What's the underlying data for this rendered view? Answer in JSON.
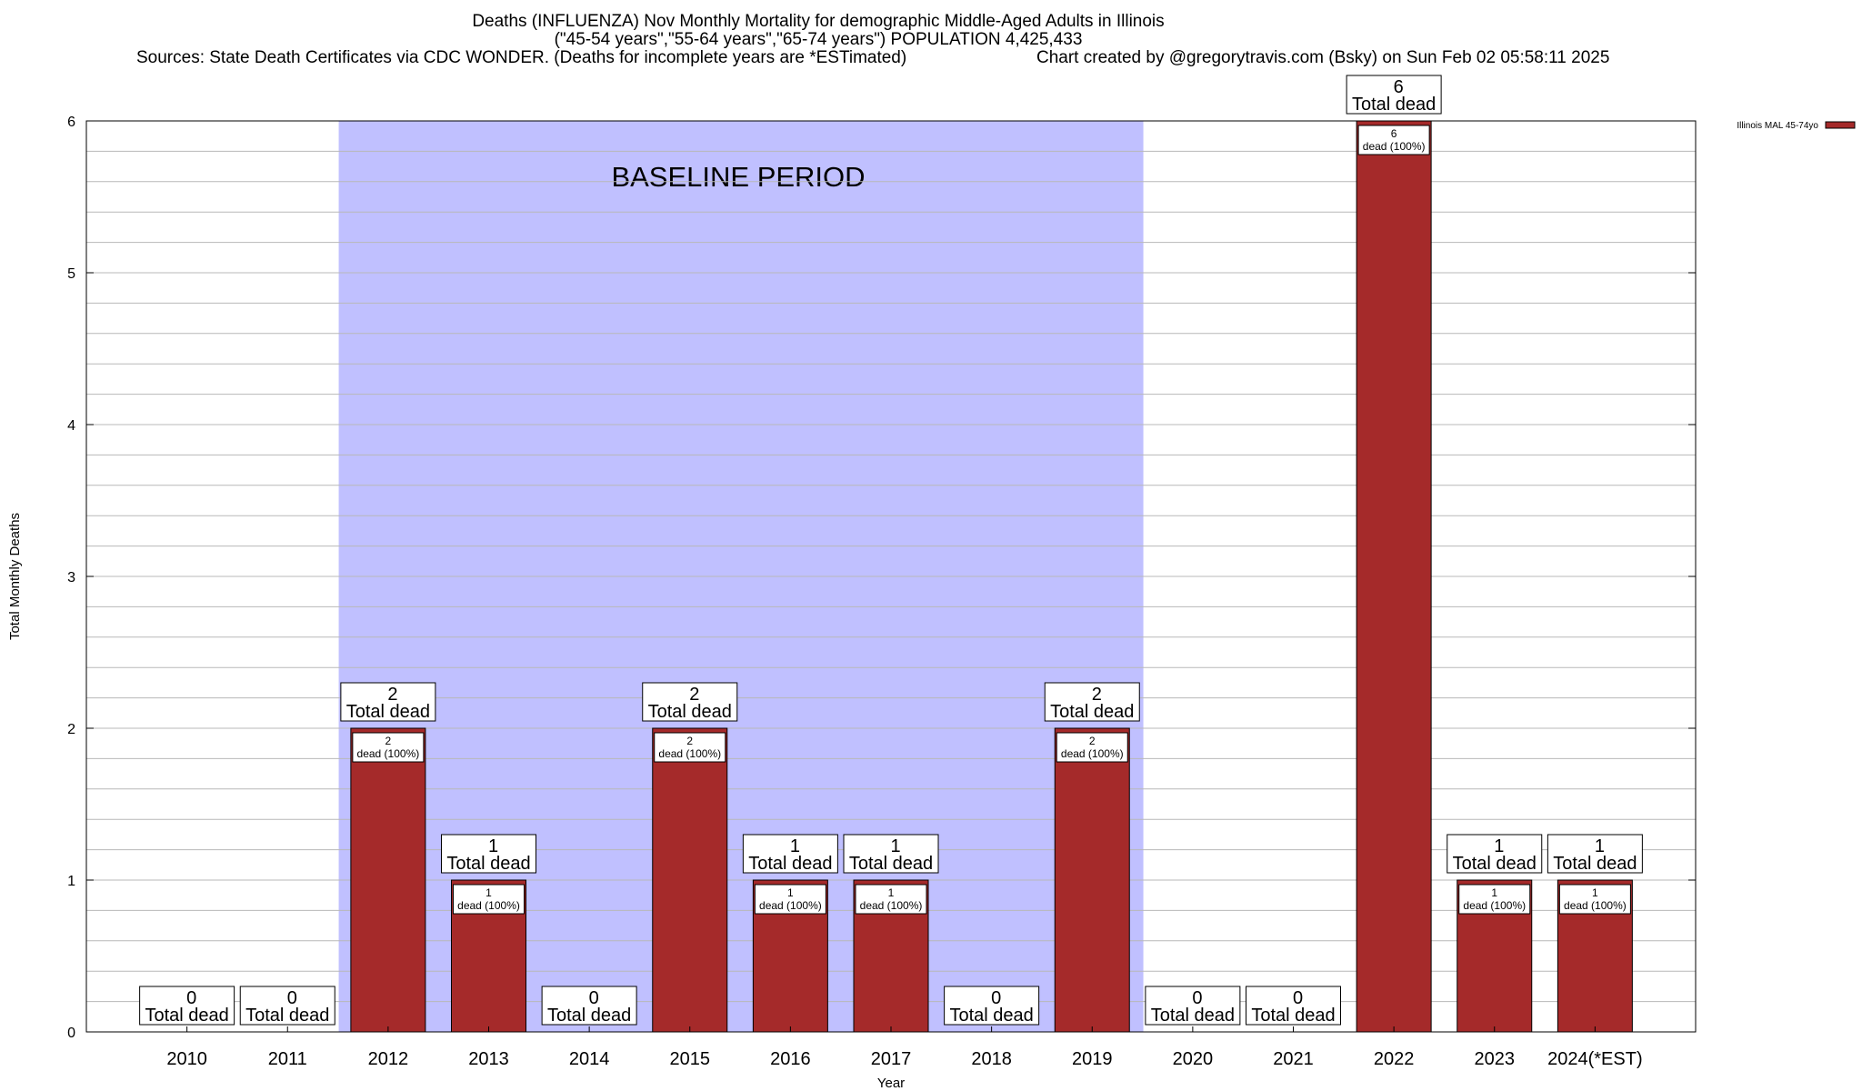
{
  "title": {
    "line1": "Deaths (INFLUENZA) Nov Monthly Mortality for demographic Middle-Aged Adults in Illinois",
    "line2": "(\"45-54 years\",\"55-64 years\",\"65-74 years\") POPULATION 4,425,433",
    "sources": "Sources: State Death Certificates via CDC WONDER. (Deaths for incomplete years are *ESTimated)",
    "credit": "Chart created by @gregorytravis.com (Bsky) on Sun Feb 02 05:58:11 2025"
  },
  "chart_data": {
    "type": "bar",
    "categories": [
      "2010",
      "2011",
      "2012",
      "2013",
      "2014",
      "2015",
      "2016",
      "2017",
      "2018",
      "2019",
      "2020",
      "2021",
      "2022",
      "2023",
      "2024(*EST)"
    ],
    "series": [
      {
        "name": "Illinois MAL 45-74yo",
        "values": [
          0,
          0,
          2,
          1,
          0,
          2,
          1,
          1,
          0,
          2,
          0,
          0,
          6,
          1,
          1
        ],
        "color": "#a52a2a"
      }
    ],
    "total_label": "Total dead",
    "segment_label": "dead (100%)",
    "xlabel": "Year",
    "ylabel": "Total Monthly Deaths",
    "ylim": [
      0,
      6
    ],
    "yticks": [
      0,
      1,
      2,
      3,
      4,
      5,
      6
    ],
    "grid": true,
    "legend": "top-right",
    "baseline": {
      "label": "BASELINE PERIOD",
      "from": "2012",
      "to": "2019",
      "color": "#c0c0ff"
    }
  }
}
